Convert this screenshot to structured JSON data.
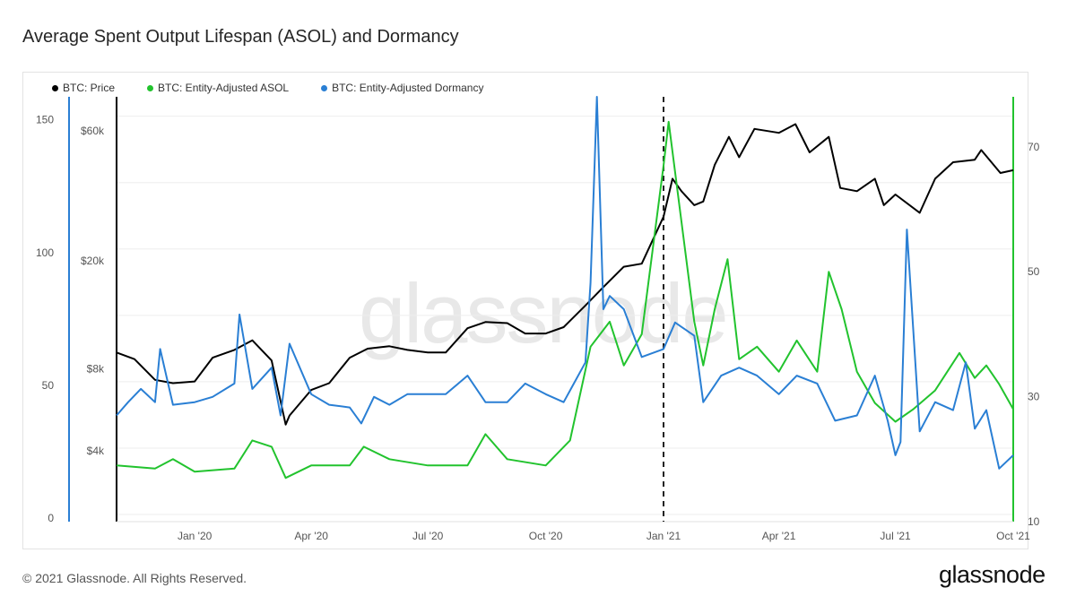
{
  "title": "Average Spent Output Lifespan (ASOL) and Dormancy",
  "footer": "© 2021 Glassnode. All Rights Reserved.",
  "brand": "glassnode",
  "watermark": "glassnode",
  "colors": {
    "price": "#000000",
    "asol": "#22c32e",
    "dormancy": "#2a7fd4",
    "grid": "#eeeeee"
  },
  "chart_data": {
    "type": "line",
    "legend_position": "top-left",
    "x_tick_labels": [
      "Jan '20",
      "Apr '20",
      "Jul '20",
      "Oct '20",
      "Jan '21",
      "Apr '21",
      "Jul '21",
      "Oct '21"
    ],
    "x_tick_dates": [
      "2020-01-01",
      "2020-04-01",
      "2020-07-01",
      "2020-10-01",
      "2021-01-01",
      "2021-04-01",
      "2021-07-01",
      "2021-10-01"
    ],
    "x_range": [
      "2019-11-01",
      "2021-10-01"
    ],
    "y_left_dormancy": {
      "ticks": [
        0,
        50,
        100,
        150
      ],
      "range": [
        0,
        160
      ]
    },
    "y_left_price": {
      "ticks": [
        "$4k",
        "$8k",
        "$20k",
        "$60k"
      ],
      "tick_values": [
        4000,
        8000,
        20000,
        60000
      ],
      "scale": "log"
    },
    "y_right_asol": {
      "ticks": [
        10,
        30,
        50,
        70
      ],
      "range": [
        10,
        78
      ]
    },
    "annotation": {
      "type": "vertical-dashed-line",
      "x": "2021-01-01"
    },
    "series": [
      {
        "name": "BTC: Price",
        "color": "#000000",
        "axis": "price",
        "x": [
          "2019-11-01",
          "2019-11-15",
          "2019-12-01",
          "2019-12-15",
          "2020-01-01",
          "2020-01-15",
          "2020-02-01",
          "2020-02-15",
          "2020-03-01",
          "2020-03-12",
          "2020-03-15",
          "2020-04-01",
          "2020-04-15",
          "2020-05-01",
          "2020-05-15",
          "2020-06-01",
          "2020-06-15",
          "2020-07-01",
          "2020-07-15",
          "2020-08-01",
          "2020-08-15",
          "2020-09-01",
          "2020-09-15",
          "2020-10-01",
          "2020-10-15",
          "2020-11-01",
          "2020-11-15",
          "2020-12-01",
          "2020-12-15",
          "2021-01-01",
          "2021-01-08",
          "2021-01-15",
          "2021-01-25",
          "2021-02-01",
          "2021-02-10",
          "2021-02-21",
          "2021-03-01",
          "2021-03-13",
          "2021-04-01",
          "2021-04-14",
          "2021-04-25",
          "2021-05-10",
          "2021-05-19",
          "2021-06-01",
          "2021-06-15",
          "2021-06-22",
          "2021-07-01",
          "2021-07-20",
          "2021-08-01",
          "2021-08-15",
          "2021-09-01",
          "2021-09-06",
          "2021-09-21",
          "2021-10-01"
        ],
        "values": [
          9200,
          8700,
          7300,
          7100,
          7200,
          8800,
          9400,
          10200,
          8600,
          5000,
          5400,
          6700,
          7100,
          8800,
          9500,
          9700,
          9400,
          9200,
          9200,
          11300,
          11900,
          11800,
          10800,
          10800,
          11400,
          13700,
          16000,
          19000,
          19500,
          29000,
          40000,
          36000,
          32000,
          33000,
          45000,
          57000,
          48000,
          61000,
          59000,
          63500,
          50000,
          57000,
          37000,
          36000,
          40000,
          32000,
          35000,
          30000,
          40000,
          46000,
          47000,
          51000,
          42000,
          43000
        ]
      },
      {
        "name": "BTC: Entity-Adjusted ASOL",
        "color": "#22c32e",
        "axis": "asol",
        "x": [
          "2019-11-01",
          "2019-12-01",
          "2019-12-15",
          "2020-01-01",
          "2020-02-01",
          "2020-02-15",
          "2020-03-01",
          "2020-03-12",
          "2020-04-01",
          "2020-05-01",
          "2020-05-12",
          "2020-06-01",
          "2020-07-01",
          "2020-08-01",
          "2020-08-15",
          "2020-09-01",
          "2020-10-01",
          "2020-10-20",
          "2020-11-05",
          "2020-11-20",
          "2020-12-01",
          "2020-12-15",
          "2021-01-01",
          "2021-01-05",
          "2021-01-15",
          "2021-01-25",
          "2021-02-01",
          "2021-02-10",
          "2021-02-20",
          "2021-03-01",
          "2021-03-15",
          "2021-04-01",
          "2021-04-15",
          "2021-05-01",
          "2021-05-10",
          "2021-05-20",
          "2021-06-01",
          "2021-06-15",
          "2021-07-01",
          "2021-07-15",
          "2021-08-01",
          "2021-08-20",
          "2021-09-01",
          "2021-09-10",
          "2021-09-20",
          "2021-10-01"
        ],
        "values": [
          19,
          18.5,
          20,
          18,
          18.5,
          23,
          22,
          17,
          19,
          19,
          22,
          20,
          19,
          19,
          24,
          20,
          19,
          23,
          38,
          42,
          35,
          40,
          67,
          74,
          58,
          42,
          35,
          44,
          52,
          36,
          38,
          34,
          39,
          34,
          50,
          44,
          34,
          29,
          26,
          28,
          31,
          37,
          33,
          35,
          32,
          28
        ]
      },
      {
        "name": "BTC: Entity-Adjusted Dormancy",
        "color": "#2a7fd4",
        "axis": "dormancy",
        "x": [
          "2019-11-01",
          "2019-11-10",
          "2019-11-20",
          "2019-12-01",
          "2019-12-05",
          "2019-12-15",
          "2020-01-01",
          "2020-01-15",
          "2020-02-01",
          "2020-02-05",
          "2020-02-15",
          "2020-03-01",
          "2020-03-08",
          "2020-03-15",
          "2020-04-01",
          "2020-04-15",
          "2020-05-01",
          "2020-05-10",
          "2020-05-20",
          "2020-06-01",
          "2020-06-15",
          "2020-07-01",
          "2020-07-15",
          "2020-08-01",
          "2020-08-15",
          "2020-09-01",
          "2020-09-15",
          "2020-10-01",
          "2020-10-15",
          "2020-11-01",
          "2020-11-05",
          "2020-11-10",
          "2020-11-15",
          "2020-11-20",
          "2020-12-01",
          "2020-12-15",
          "2021-01-01",
          "2021-01-10",
          "2021-01-25",
          "2021-02-01",
          "2021-02-15",
          "2021-03-01",
          "2021-03-15",
          "2021-04-01",
          "2021-04-15",
          "2021-05-01",
          "2021-05-15",
          "2021-06-01",
          "2021-06-15",
          "2021-06-25",
          "2021-07-01",
          "2021-07-05",
          "2021-07-10",
          "2021-07-20",
          "2021-08-01",
          "2021-08-15",
          "2021-08-25",
          "2021-09-01",
          "2021-09-10",
          "2021-09-20",
          "2021-10-01"
        ],
        "values": [
          40,
          45,
          50,
          45,
          65,
          44,
          45,
          47,
          52,
          78,
          50,
          58,
          40,
          67,
          48,
          44,
          43,
          37,
          47,
          44,
          48,
          48,
          48,
          55,
          45,
          45,
          52,
          48,
          45,
          60,
          90,
          160,
          80,
          85,
          80,
          62,
          65,
          75,
          70,
          45,
          55,
          58,
          55,
          48,
          55,
          52,
          38,
          40,
          55,
          38,
          25,
          30,
          110,
          34,
          45,
          42,
          60,
          35,
          42,
          20,
          25
        ]
      }
    ]
  }
}
